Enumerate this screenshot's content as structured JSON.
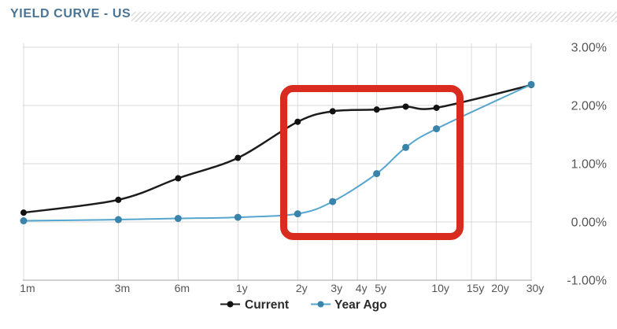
{
  "header": {
    "title": "YIELD CURVE - US"
  },
  "chart_data": {
    "type": "line",
    "title": "YIELD CURVE - US",
    "x_axis": {
      "scale": "log",
      "unit": "months",
      "ticks": [
        {
          "label": "1m",
          "months": 1
        },
        {
          "label": "3m",
          "months": 3
        },
        {
          "label": "6m",
          "months": 6
        },
        {
          "label": "1y",
          "months": 12
        },
        {
          "label": "2y",
          "months": 24
        },
        {
          "label": "3y",
          "months": 36
        },
        {
          "label": "4y",
          "months": 48
        },
        {
          "label": "5y",
          "months": 60
        },
        {
          "label": "10y",
          "months": 120
        },
        {
          "label": "15y",
          "months": 180
        },
        {
          "label": "20y",
          "months": 240
        },
        {
          "label": "30y",
          "months": 360
        }
      ]
    },
    "y_axis": {
      "side": "right",
      "range": [
        -1,
        3
      ],
      "ticks": [
        {
          "label": "3.00%",
          "value": 3
        },
        {
          "label": "2.00%",
          "value": 2
        },
        {
          "label": "1.00%",
          "value": 1
        },
        {
          "label": "0.00%",
          "value": 0
        },
        {
          "label": "-1.00%",
          "value": -1
        }
      ]
    },
    "categories": [
      "1m",
      "3m",
      "6m",
      "1y",
      "2y",
      "3y",
      "5y",
      "7y",
      "10y",
      "30y"
    ],
    "category_months": [
      1,
      3,
      6,
      12,
      24,
      36,
      60,
      84,
      120,
      360
    ],
    "series": [
      {
        "name": "Current",
        "color": "#1c1c1c",
        "marker_color": "#111111",
        "values": [
          0.16,
          0.38,
          0.75,
          1.1,
          1.72,
          1.9,
          1.93,
          1.98,
          1.96,
          2.35
        ]
      },
      {
        "name": "Year Ago",
        "color": "#55a5ce",
        "marker_color": "#3a84ac",
        "values": [
          0.02,
          0.04,
          0.06,
          0.08,
          0.14,
          0.35,
          0.83,
          1.28,
          1.6,
          2.36
        ]
      }
    ],
    "annotation_box": {
      "shape": "rounded-rectangle",
      "color": "#d92b1f",
      "covers": "approximately 1.6y through 12y maturities",
      "y_range_pct": [
        -0.25,
        2.35
      ]
    },
    "legend": {
      "position": "bottom-center",
      "entries": [
        "Current",
        "Year Ago"
      ]
    },
    "grid": "on",
    "grid_color": "#d9d9d9",
    "axis_line_color": "#a3a3a3",
    "tick_label_color": "#555555",
    "legend_text_color": "#2b2b2b"
  }
}
